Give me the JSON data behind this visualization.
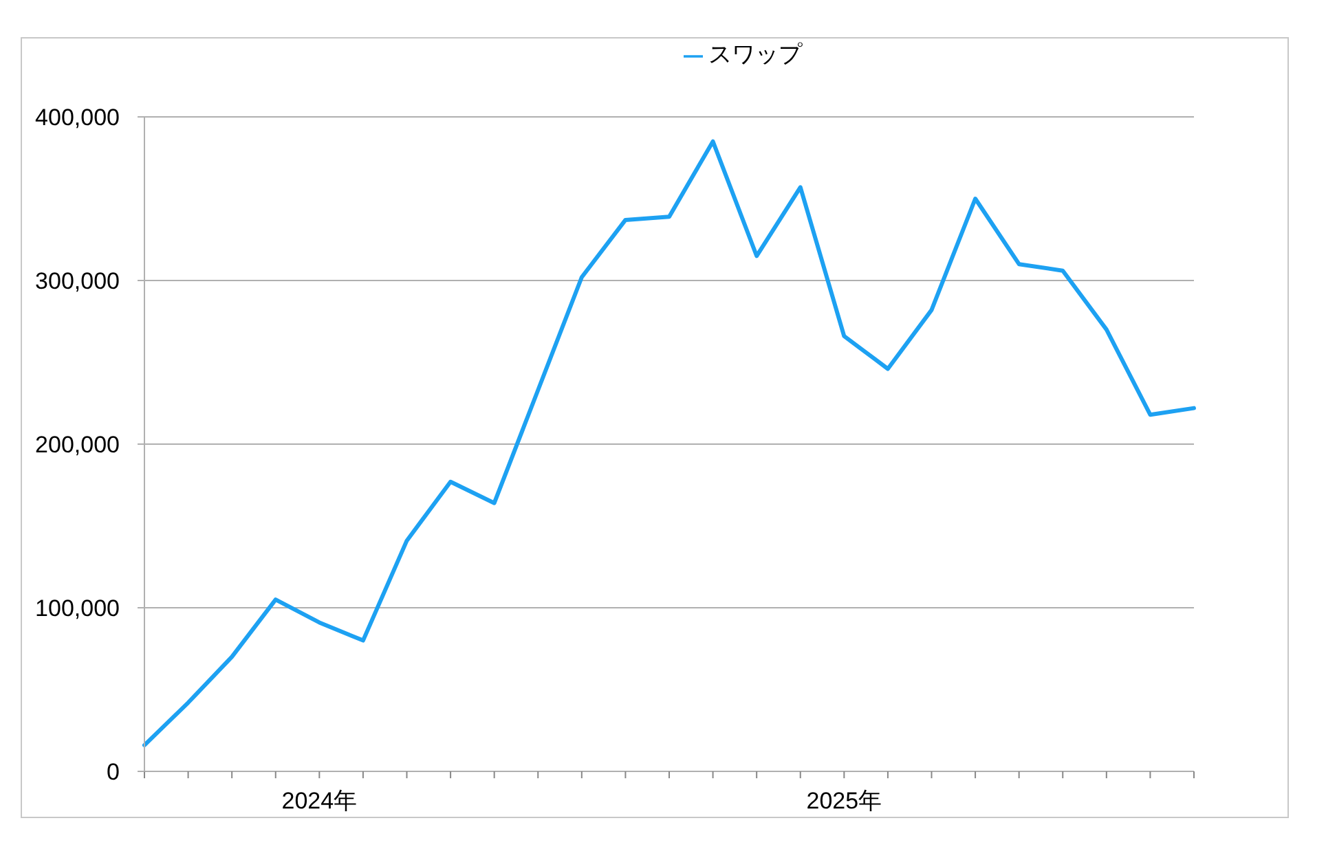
{
  "chart_data": {
    "type": "line",
    "categories": [
      null,
      null,
      null,
      null,
      "2024年",
      null,
      null,
      null,
      null,
      null,
      null,
      null,
      null,
      null,
      null,
      null,
      "2025年",
      null,
      null,
      null,
      null,
      null,
      null,
      null,
      null
    ],
    "series": [
      {
        "name": "スワップ",
        "color": "#1da1f2",
        "values": [
          16000,
          42000,
          70000,
          105000,
          91000,
          80000,
          141000,
          177000,
          164000,
          233000,
          302000,
          337000,
          339000,
          385000,
          315000,
          357000,
          266000,
          246000,
          282000,
          350000,
          310000,
          306000,
          270000,
          218000,
          222000
        ]
      }
    ],
    "ylim": [
      0,
      400000
    ],
    "yticks": [
      0,
      {
        "value": 100000,
        "label": "100,000"
      },
      {
        "value": 200000,
        "label": "200,000"
      },
      {
        "value": 300000,
        "label": "300,000"
      },
      {
        "value": 400000,
        "label": "400,000"
      }
    ],
    "grid": "y",
    "legend": "top",
    "marker": "none",
    "line_style": "solid"
  }
}
